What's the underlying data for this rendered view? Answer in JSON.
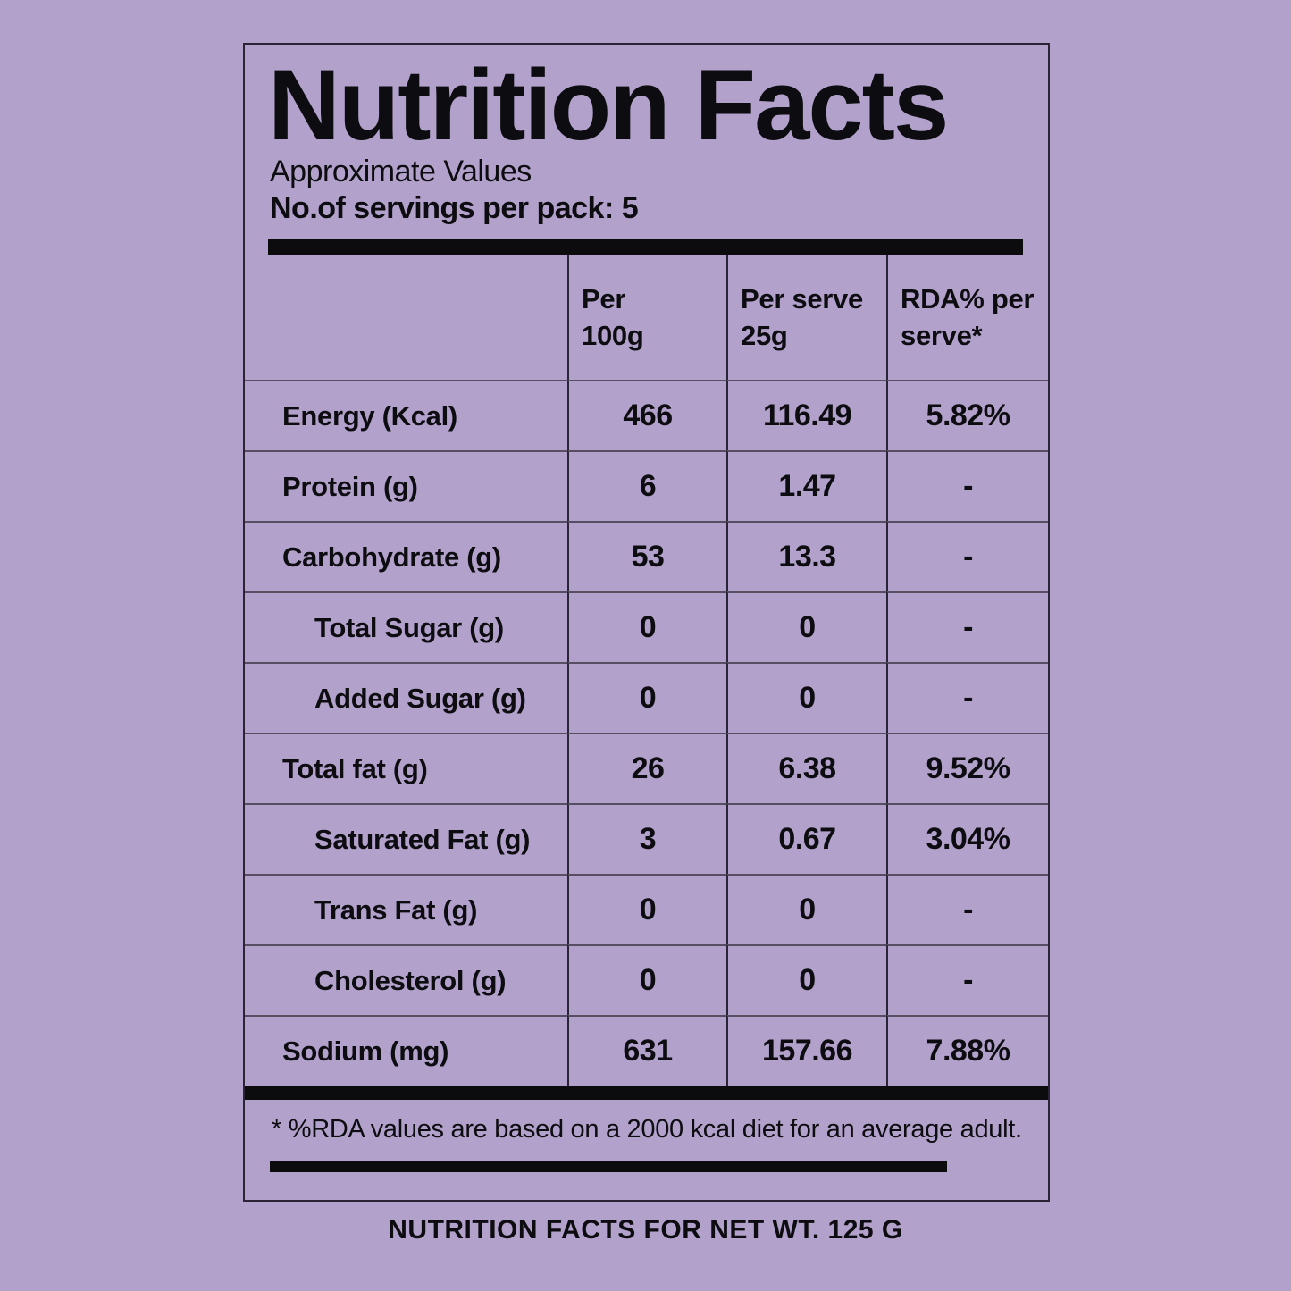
{
  "colors": {
    "background": "#b2a2cb",
    "ink": "#0d0c10",
    "bar": "#0c0b0e",
    "box_border": "#2b2436",
    "grid_vertical": "#2b2436",
    "grid_horizontal": "#564f63"
  },
  "header": {
    "title": "Nutrition Facts",
    "subtitle": "Approximate Values",
    "servings": "No.of servings per pack: 5"
  },
  "table": {
    "column_headers": [
      {
        "id": "per-100g",
        "lines": [
          "Per",
          "100g"
        ]
      },
      {
        "id": "per-serve",
        "lines": [
          "Per serve",
          "25g"
        ]
      },
      {
        "id": "rda-per-serve",
        "lines": [
          "RDA% per",
          "serve*"
        ]
      }
    ],
    "rows": [
      {
        "label": "Energy (Kcal)",
        "indent": false,
        "per_100g": "466",
        "per_serve": "116.49",
        "rda": "5.82%"
      },
      {
        "label": "Protein (g)",
        "indent": false,
        "per_100g": "6",
        "per_serve": "1.47",
        "rda": "-"
      },
      {
        "label": "Carbohydrate (g)",
        "indent": false,
        "per_100g": "53",
        "per_serve": "13.3",
        "rda": "-"
      },
      {
        "label": "Total Sugar (g)",
        "indent": true,
        "per_100g": "0",
        "per_serve": "0",
        "rda": "-"
      },
      {
        "label": "Added Sugar (g)",
        "indent": true,
        "per_100g": "0",
        "per_serve": "0",
        "rda": "-"
      },
      {
        "label": "Total fat (g)",
        "indent": false,
        "per_100g": "26",
        "per_serve": "6.38",
        "rda": "9.52%"
      },
      {
        "label": "Saturated Fat (g)",
        "indent": true,
        "per_100g": "3",
        "per_serve": "0.67",
        "rda": "3.04%"
      },
      {
        "label": "Trans Fat (g)",
        "indent": true,
        "per_100g": "0",
        "per_serve": "0",
        "rda": "-"
      },
      {
        "label": "Cholesterol (g)",
        "indent": true,
        "per_100g": "0",
        "per_serve": "0",
        "rda": "-"
      },
      {
        "label": "Sodium (mg)",
        "indent": false,
        "per_100g": "631",
        "per_serve": "157.66",
        "rda": "7.88%"
      }
    ]
  },
  "footnote": "* %RDA values are based on a 2000 kcal diet for an average adult.",
  "footer": "NUTRITION FACTS FOR NET WT. 125 G"
}
